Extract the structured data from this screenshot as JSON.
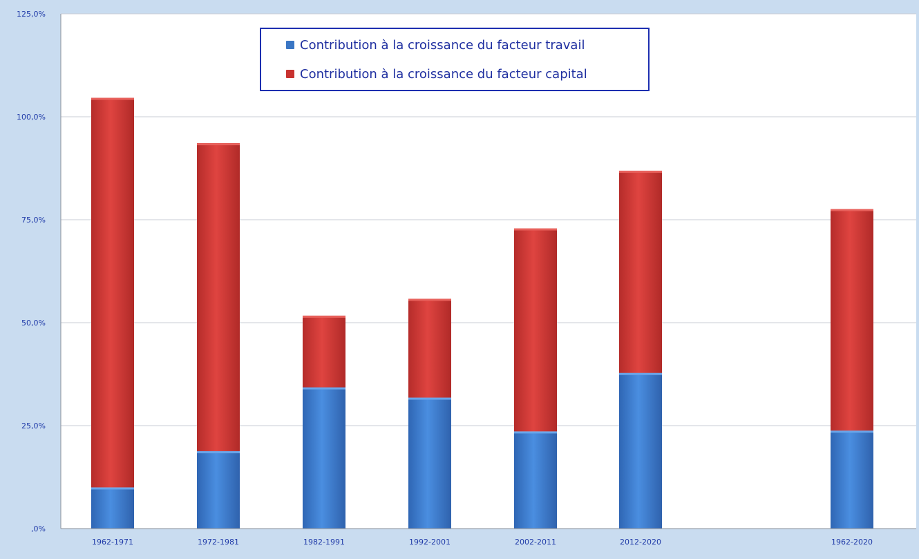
{
  "chart_data": {
    "type": "bar",
    "stacked": true,
    "categories": [
      "1962-1971",
      "1972-1981",
      "1982-1991",
      "1992-2001",
      "2002-2011",
      "2012-2020",
      "1962-2020"
    ],
    "series": [
      {
        "name": "Contribution à la croissance du facteur travail",
        "color": "#3f7fd0",
        "values": [
          10.0,
          18.8,
          34.3,
          31.8,
          23.6,
          37.8,
          23.8
        ]
      },
      {
        "name": "Contribution à la croissance du facteur capital",
        "color": "#d63a36",
        "values": [
          94.6,
          74.8,
          17.4,
          24.0,
          49.3,
          49.1,
          53.8
        ]
      }
    ],
    "ylim": [
      0,
      125
    ],
    "yticks": [
      0,
      25,
      50,
      75,
      100,
      125
    ],
    "ytick_labels": [
      ",0%",
      "25,0%",
      "50,0%",
      "75,0%",
      "100,0%",
      "125,0%"
    ],
    "grid": true,
    "legend_position": "top-center",
    "title": "",
    "xlabel": "",
    "ylabel": ""
  }
}
